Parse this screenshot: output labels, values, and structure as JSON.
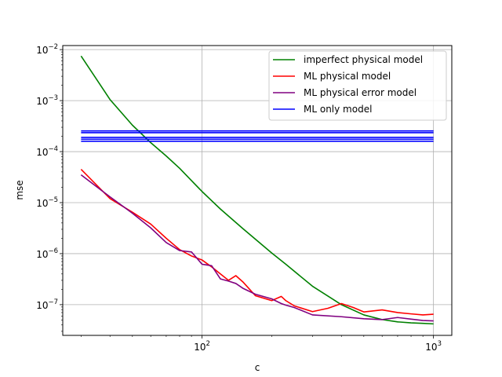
{
  "chart_data": {
    "type": "line",
    "title": "",
    "xlabel": "c",
    "ylabel": "mse",
    "xscale": "log",
    "yscale": "log",
    "xlim": [
      25,
      1200
    ],
    "ylim": [
      2.5e-08,
      0.012
    ],
    "grid": true,
    "legend_position": "top-right",
    "x_tick_labels": [
      {
        "value": 100,
        "base": "10",
        "exp": "2"
      },
      {
        "value": 1000,
        "base": "10",
        "exp": "3"
      }
    ],
    "y_tick_labels": [
      {
        "value": 1e-07,
        "base": "10",
        "exp": "−7"
      },
      {
        "value": 1e-06,
        "base": "10",
        "exp": "−6"
      },
      {
        "value": 1e-05,
        "base": "10",
        "exp": "−5"
      },
      {
        "value": 0.0001,
        "base": "10",
        "exp": "−4"
      },
      {
        "value": 0.001,
        "base": "10",
        "exp": "−3"
      },
      {
        "value": 0.01,
        "base": "10",
        "exp": "−2"
      }
    ],
    "series": [
      {
        "name": "imperfect physical model",
        "color": "#008000",
        "x": [
          30,
          40,
          50,
          60,
          70,
          80,
          90,
          100,
          120,
          150,
          200,
          230,
          300,
          400,
          500,
          600,
          700,
          800,
          900,
          1000
        ],
        "y": [
          0.0075,
          0.00105,
          0.00033,
          0.00015,
          8.2e-05,
          4.7e-05,
          2.7e-05,
          1.65e-05,
          7.5e-06,
          3.1e-06,
          1.03e-06,
          6.2e-07,
          2.3e-07,
          1e-07,
          6.3e-08,
          5.1e-08,
          4.6e-08,
          4.4e-08,
          4.3e-08,
          4.2e-08
        ]
      },
      {
        "name": "ML physical model",
        "color": "#ff0000",
        "x": [
          30,
          40,
          50,
          60,
          70,
          80,
          90,
          100,
          110,
          120,
          130,
          140,
          150,
          170,
          200,
          220,
          230,
          250,
          300,
          350,
          400,
          450,
          500,
          600,
          700,
          800,
          900,
          1000
        ],
        "y": [
          4.5e-05,
          1.2e-05,
          6.5e-06,
          3.8e-06,
          2e-06,
          1.2e-06,
          9e-07,
          7.5e-07,
          5.5e-07,
          4e-07,
          3e-07,
          3.7e-07,
          2.8e-07,
          1.5e-07,
          1.2e-07,
          1.45e-07,
          1.2e-07,
          9.5e-08,
          7.3e-08,
          8.5e-08,
          1.05e-07,
          8.8e-08,
          7.2e-08,
          7.9e-08,
          7e-08,
          6.6e-08,
          6.3e-08,
          6.5e-08
        ]
      },
      {
        "name": "ML physical error model",
        "color": "#800080",
        "x": [
          30,
          40,
          50,
          60,
          70,
          80,
          90,
          100,
          110,
          120,
          130,
          140,
          150,
          170,
          200,
          220,
          230,
          250,
          300,
          400,
          500,
          600,
          700,
          800,
          900,
          1000
        ],
        "y": [
          3.5e-05,
          1.3e-05,
          6.2e-06,
          3.2e-06,
          1.65e-06,
          1.15e-06,
          1.08e-06,
          6.2e-07,
          5.8e-07,
          3.2e-07,
          2.9e-07,
          2.6e-07,
          2.1e-07,
          1.6e-07,
          1.3e-07,
          1.05e-07,
          9.8e-08,
          8.8e-08,
          6.3e-08,
          5.8e-08,
          5.3e-08,
          5.1e-08,
          5.6e-08,
          5.2e-08,
          4.9e-08,
          4.8e-08
        ]
      },
      {
        "name": "ML only model",
        "color": "#0000ff",
        "lines": [
          {
            "x": [
              30,
              1000
            ],
            "y": [
              0.000255,
              0.000255
            ]
          },
          {
            "x": [
              30,
              1000
            ],
            "y": [
              0.000235,
              0.000235
            ]
          },
          {
            "x": [
              30,
              1000
            ],
            "y": [
              0.00019,
              0.00019
            ]
          },
          {
            "x": [
              30,
              1000
            ],
            "y": [
              0.000175,
              0.000175
            ]
          },
          {
            "x": [
              30,
              1000
            ],
            "y": [
              0.00016,
              0.00016
            ]
          }
        ]
      }
    ]
  }
}
